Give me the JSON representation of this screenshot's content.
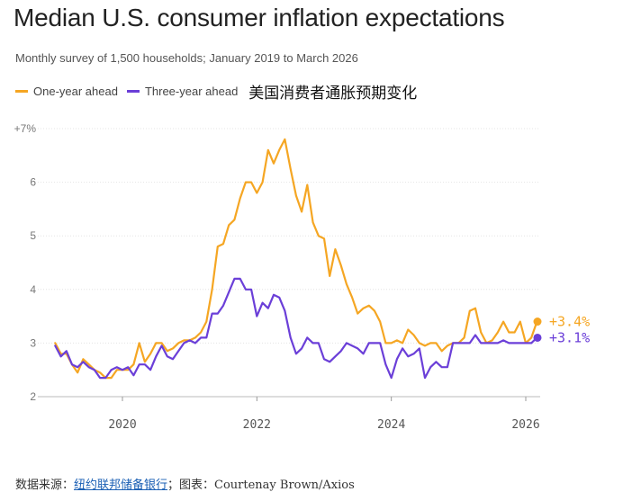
{
  "chart_data": {
    "type": "line",
    "title": "Median U.S. consumer inflation expectations",
    "subtitle": "Monthly survey of 1,500 households; January 2019 to March 2026",
    "annotation": "美国消费者通胀预期变化",
    "x_start": "2019-01",
    "x_end": "2026-03",
    "ylim": [
      2,
      7
    ],
    "y_ticks": [
      "2",
      "3",
      "4",
      "5",
      "6",
      "+7%"
    ],
    "x_ticks": [
      "2020",
      "2022",
      "2024",
      "2026"
    ],
    "grid": "horizontal",
    "legend_position": "top-left",
    "series": [
      {
        "name": "One-year ahead",
        "color": "#f5a623",
        "end_label": "+3.4%",
        "values": [
          3.0,
          2.8,
          2.8,
          2.6,
          2.45,
          2.7,
          2.6,
          2.5,
          2.45,
          2.35,
          2.35,
          2.5,
          2.5,
          2.5,
          2.6,
          3.0,
          2.65,
          2.8,
          3.0,
          3.0,
          2.85,
          2.9,
          3.0,
          3.05,
          3.05,
          3.1,
          3.2,
          3.4,
          4.0,
          4.8,
          4.85,
          5.2,
          5.3,
          5.7,
          6.0,
          6.0,
          5.8,
          6.0,
          6.6,
          6.35,
          6.6,
          6.8,
          6.25,
          5.75,
          5.45,
          5.95,
          5.25,
          5.0,
          4.95,
          4.25,
          4.75,
          4.45,
          4.1,
          3.85,
          3.55,
          3.65,
          3.7,
          3.6,
          3.4,
          3.0,
          3.0,
          3.05,
          3.0,
          3.25,
          3.15,
          3.0,
          2.95,
          3.0,
          3.0,
          2.85,
          2.95,
          3.0,
          3.0,
          3.1,
          3.6,
          3.65,
          3.2,
          3.0,
          3.05,
          3.2,
          3.4,
          3.2,
          3.2,
          3.4,
          3.0,
          3.1,
          3.4
        ]
      },
      {
        "name": "Three-year ahead",
        "color": "#6b3fd8",
        "end_label": "+3.1%",
        "values": [
          2.95,
          2.75,
          2.85,
          2.6,
          2.55,
          2.65,
          2.55,
          2.5,
          2.35,
          2.35,
          2.5,
          2.55,
          2.5,
          2.55,
          2.4,
          2.6,
          2.6,
          2.5,
          2.75,
          2.95,
          2.75,
          2.7,
          2.85,
          3.0,
          3.05,
          3.0,
          3.1,
          3.1,
          3.55,
          3.55,
          3.7,
          3.95,
          4.2,
          4.2,
          4.0,
          4.0,
          3.5,
          3.75,
          3.65,
          3.9,
          3.85,
          3.6,
          3.1,
          2.8,
          2.9,
          3.1,
          3.0,
          3.0,
          2.7,
          2.65,
          2.75,
          2.85,
          3.0,
          2.95,
          2.9,
          2.8,
          3.0,
          3.0,
          3.0,
          2.6,
          2.35,
          2.7,
          2.9,
          2.75,
          2.8,
          2.9,
          2.35,
          2.55,
          2.65,
          2.55,
          2.55,
          3.0,
          3.0,
          3.0,
          3.0,
          3.15,
          3.0,
          3.0,
          3.0,
          3.0,
          3.05,
          3.0,
          3.0,
          3.0,
          3.0,
          3.0,
          3.1
        ]
      }
    ]
  },
  "source": {
    "prefix": "数据来源：",
    "link_text": "纽约联邦储备银行",
    "suffix": "；图表：Courtenay Brown/Axios"
  }
}
